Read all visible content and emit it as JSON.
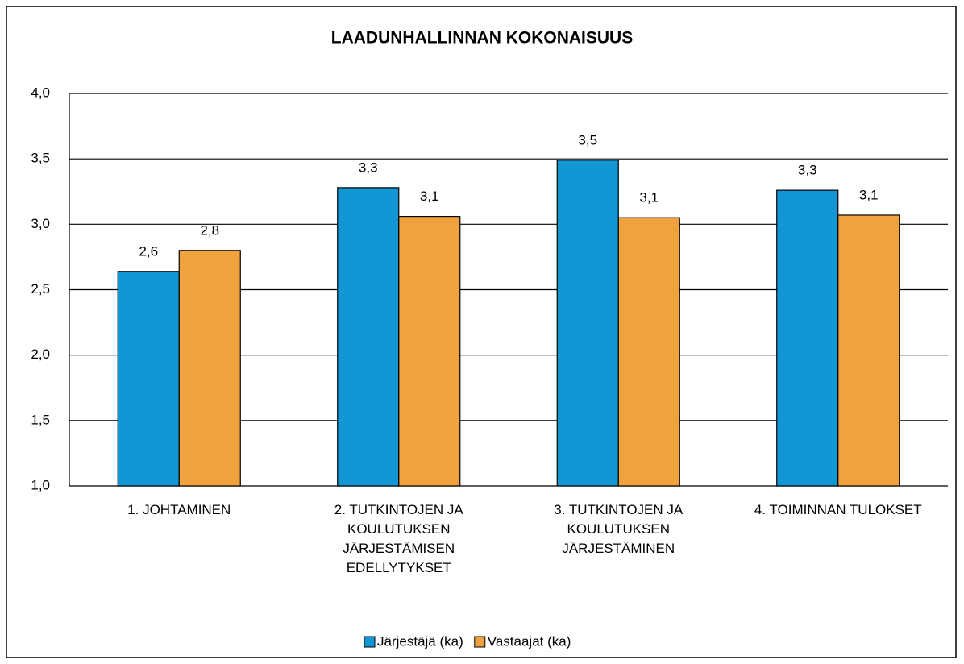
{
  "chart_data": {
    "type": "bar",
    "title": "LAADUNHALLINNAN KOKONAISUUS",
    "categories": [
      "1. JOHTAMINEN",
      "2. TUTKINTOJEN JA KOULUTUKSEN JÄRJESTÄMISEN EDELLYTYKSET",
      "3. TUTKINTOJEN JA KOULUTUKSEN JÄRJESTÄMINEN",
      "4. TOIMINNAN TULOKSET"
    ],
    "series": [
      {
        "name": "Järjestäjä (ka)",
        "color": "#1296d4",
        "values": [
          2.64,
          3.28,
          3.49,
          3.26
        ],
        "value_labels": [
          "2,6",
          "3,3",
          "3,5",
          "3,3"
        ]
      },
      {
        "name": "Vastaajat (ka)",
        "color": "#f0a23e",
        "values": [
          2.8,
          3.06,
          3.05,
          3.07
        ],
        "value_labels": [
          "2,8",
          "3,1",
          "3,1",
          "3,1"
        ]
      }
    ],
    "ylim": [
      1,
      4
    ],
    "yticks": [
      {
        "value": 1,
        "label": "1,0"
      },
      {
        "value": 1.5,
        "label": "1,5"
      },
      {
        "value": 2,
        "label": "2,0"
      },
      {
        "value": 2.5,
        "label": "2,5"
      },
      {
        "value": 3,
        "label": "3,0"
      },
      {
        "value": 3.5,
        "label": "3,5"
      },
      {
        "value": 4,
        "label": "4,0"
      }
    ],
    "grid": true,
    "legend": "bottom"
  }
}
